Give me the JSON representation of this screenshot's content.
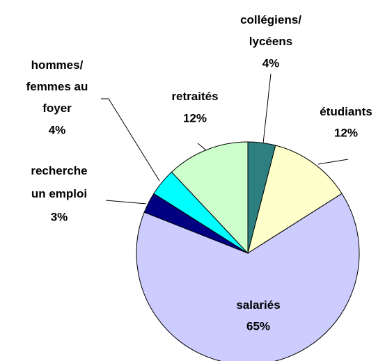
{
  "chart_data": {
    "type": "pie",
    "categories": [
      "collégiens/\nlycéens",
      "étudiants",
      "salariés",
      "recherche\nun emploi",
      "hommes/\nfemmes au\nfoyer",
      "retraités"
    ],
    "values": [
      4,
      12,
      65,
      3,
      4,
      12
    ],
    "value_labels": [
      "4%",
      "12%",
      "65%",
      "3%",
      "4%",
      "12%"
    ],
    "colors": [
      "#2e8080",
      "#ffffcc",
      "#ccccff",
      "#000080",
      "#00ffff",
      "#ccffcc"
    ]
  }
}
